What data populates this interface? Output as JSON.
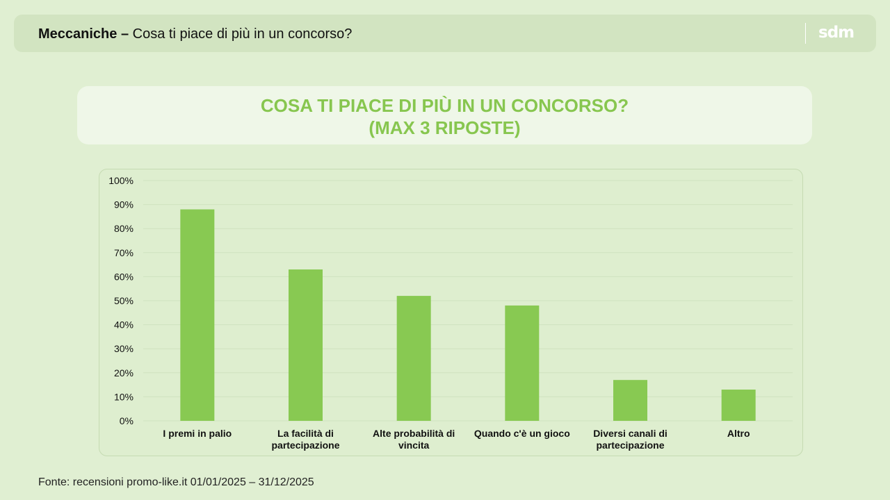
{
  "header": {
    "title_bold": "Meccaniche –",
    "title_rest": "Cosa ti piace di più in un concorso?",
    "logo_text": "sdm"
  },
  "chart_title": {
    "line1": "COSA TI PIACE DI PIÙ IN UN CONCORSO?",
    "line2": "(MAX 3 RIPOSTE)"
  },
  "chart_data": {
    "type": "bar",
    "categories": [
      [
        "I premi in palio"
      ],
      [
        "La facilità di",
        "partecipazione"
      ],
      [
        "Alte probabilità di",
        "vincita"
      ],
      [
        "Quando c'è un gioco"
      ],
      [
        "Diversi canali di",
        "partecipazione"
      ],
      [
        "Altro"
      ]
    ],
    "values": [
      88,
      63,
      52,
      48,
      17,
      13
    ],
    "ylim": [
      0,
      100
    ],
    "yticks": [
      "0%",
      "10%",
      "20%",
      "30%",
      "40%",
      "50%",
      "60%",
      "70%",
      "80%",
      "90%",
      "100%"
    ],
    "grid": true,
    "bar_color": "#88c952"
  },
  "footer": {
    "source": "Fonte: recensioni promo-like.it 01/01/2025 – 31/12/2025"
  }
}
